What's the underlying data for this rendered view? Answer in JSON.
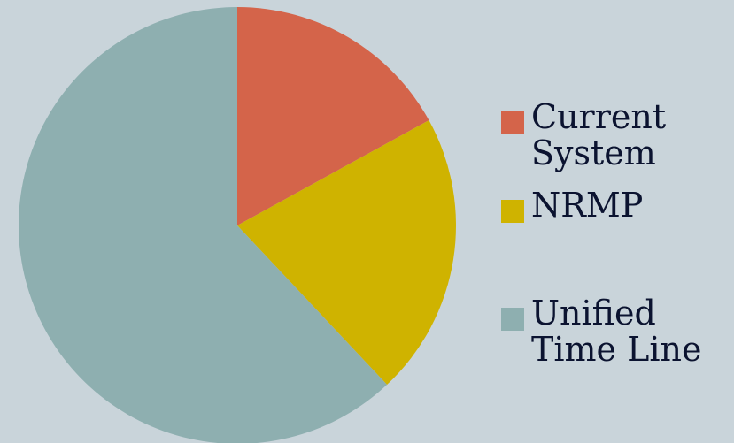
{
  "chart_data": {
    "type": "pie",
    "title": "",
    "start_angle_deg": 0,
    "direction": "clockwise",
    "legend_position": "right",
    "series": [
      {
        "name": "Current System",
        "value": 17,
        "color": "#d4644a"
      },
      {
        "name": "NRMP",
        "value": 21,
        "color": "#cfb300"
      },
      {
        "name": "Unified Time Line",
        "value": 62,
        "color": "#8eafb0"
      }
    ]
  }
}
